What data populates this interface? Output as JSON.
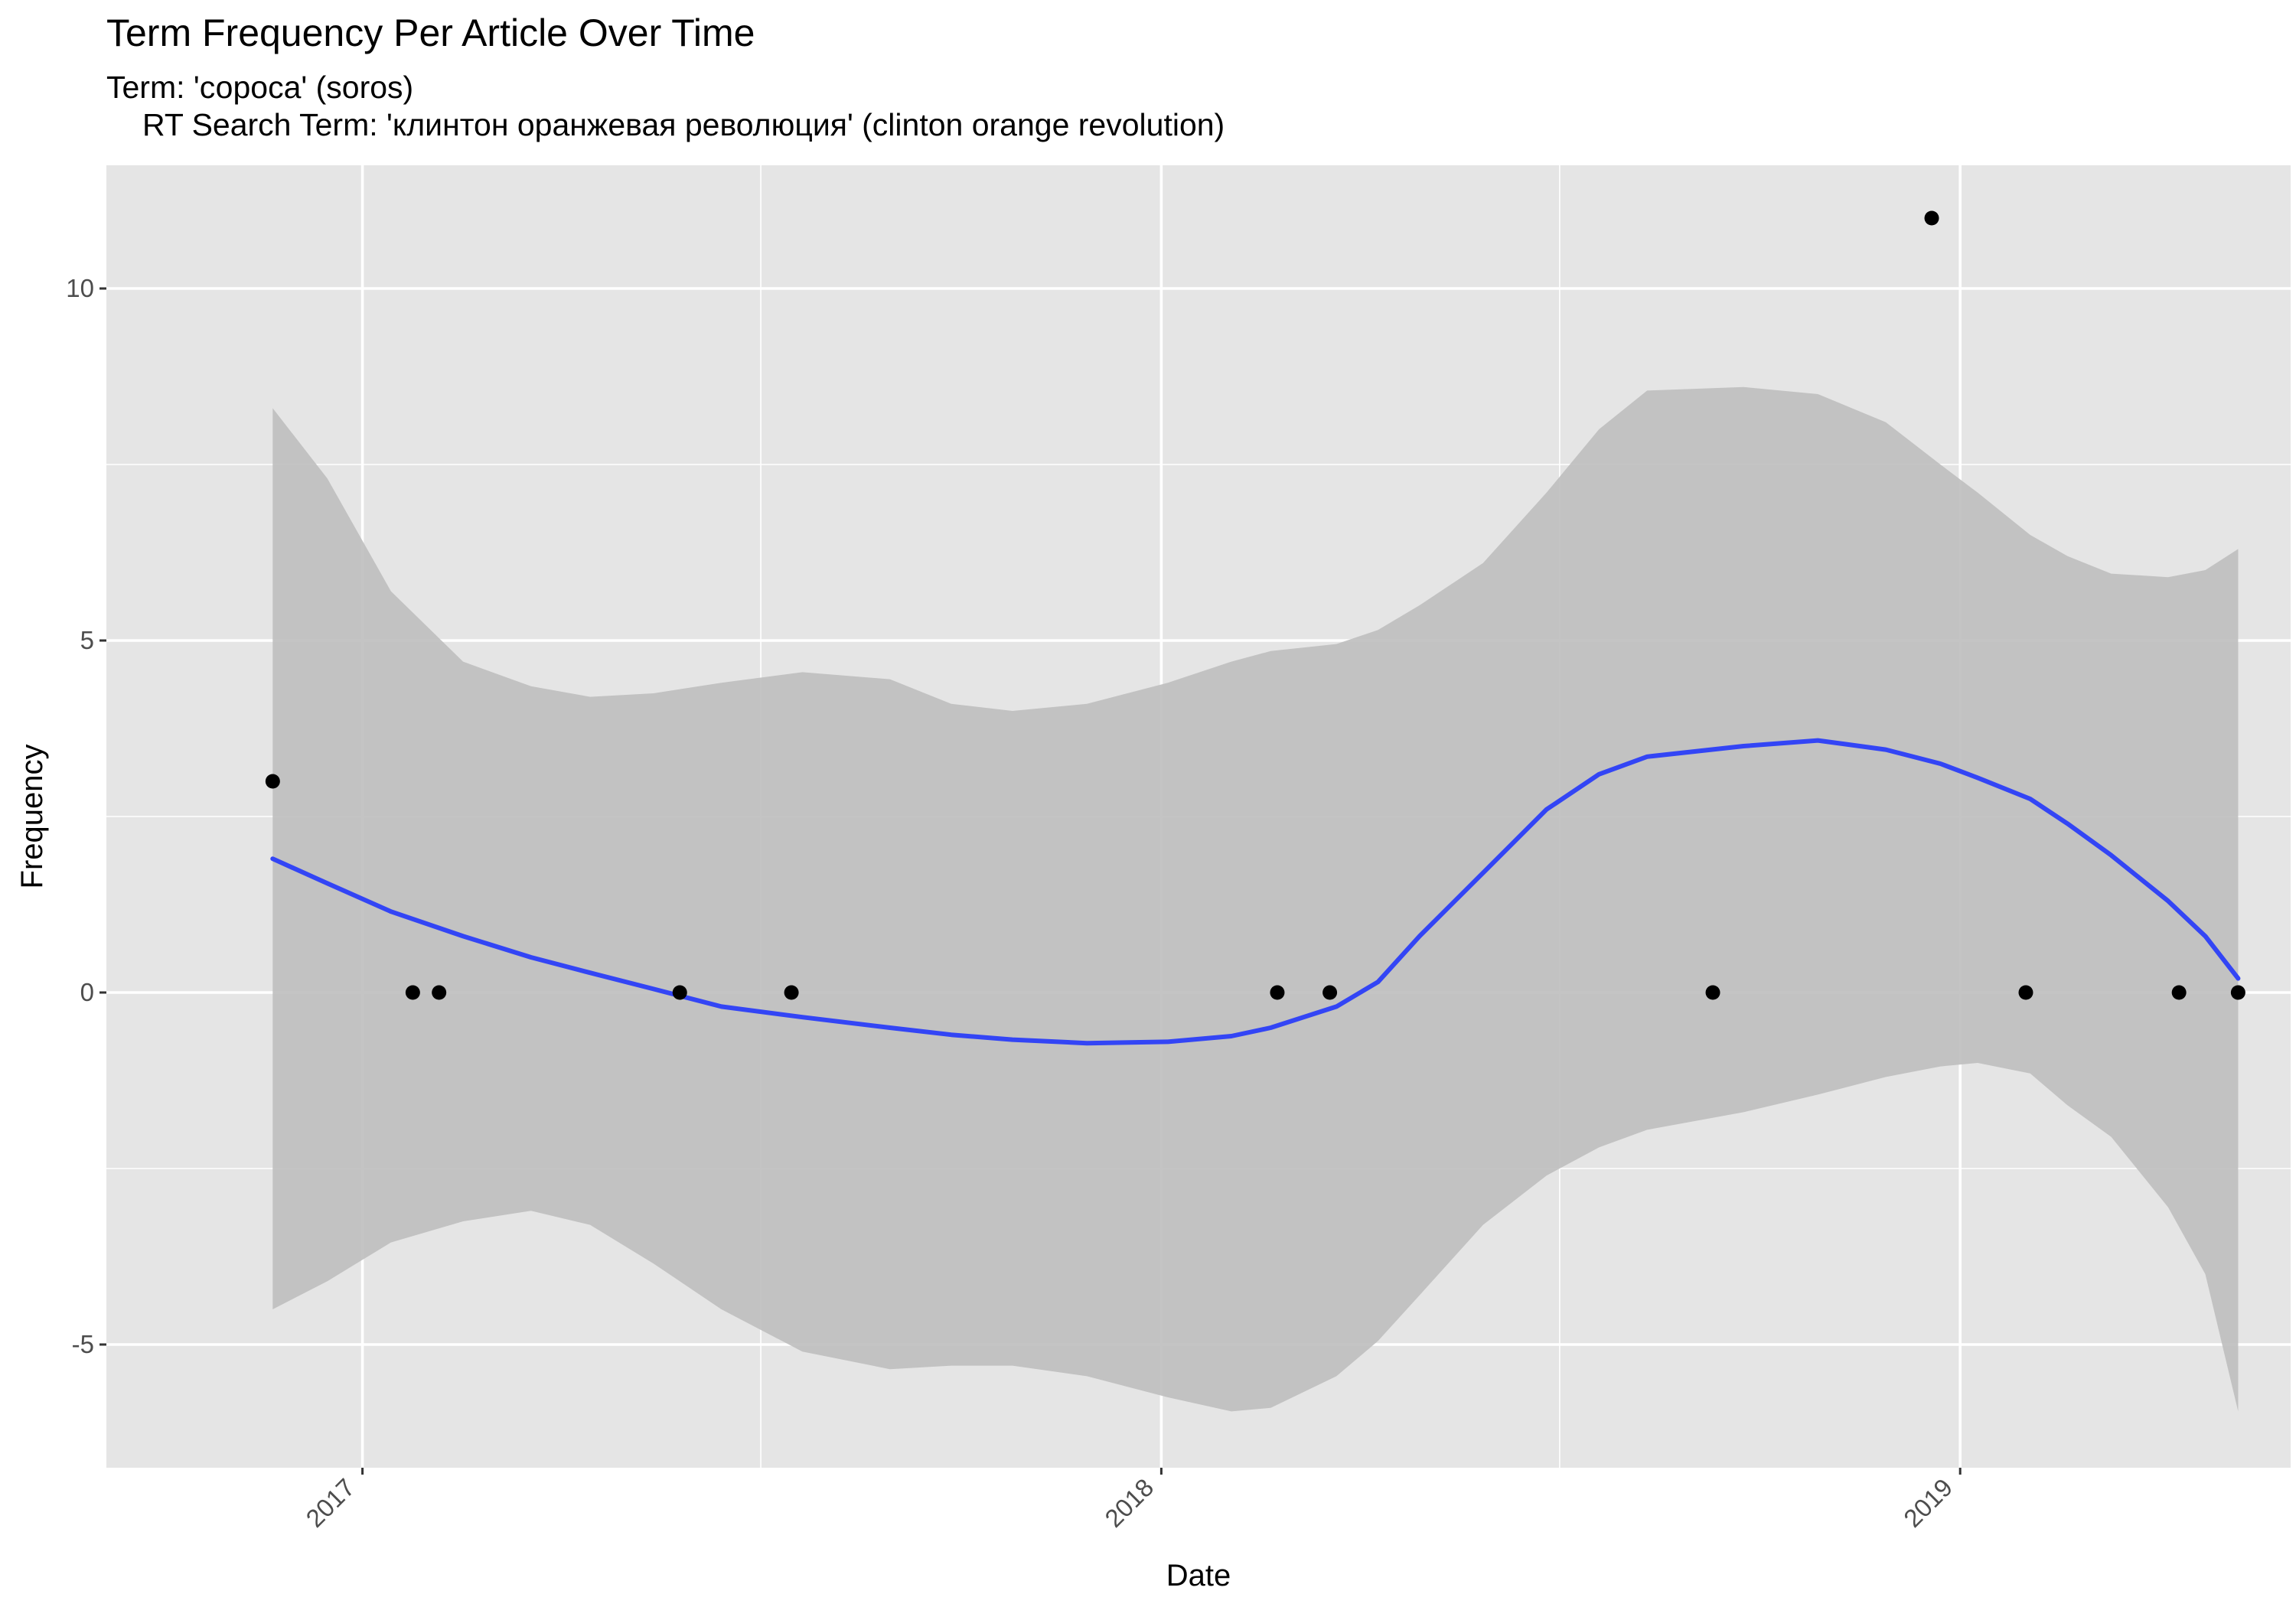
{
  "chart_data": {
    "type": "scatter",
    "title": "Term Frequency Per Article Over Time",
    "subtitle_line1": "Term: 'сороса' (soros)",
    "subtitle_line2": "RT Search Term: 'клинтон оранжевая революция' (clinton orange revolution)",
    "xlabel": "Date",
    "ylabel": "Frequency",
    "x_ticks": [
      "2017",
      "2018",
      "2019"
    ],
    "y_ticks": [
      "-5",
      "0",
      "5",
      "10"
    ],
    "y_tick_values": [
      -5,
      0,
      5,
      10
    ],
    "xlim": [
      "2016-09-06",
      "2019-06-01"
    ],
    "ylim": [
      -6.75,
      11.75
    ],
    "grid": true,
    "points": [
      {
        "date": "2016-11-21",
        "value": 3
      },
      {
        "date": "2017-01-24",
        "value": 0
      },
      {
        "date": "2017-02-05",
        "value": 0
      },
      {
        "date": "2017-05-26",
        "value": 0
      },
      {
        "date": "2017-07-16",
        "value": 0
      },
      {
        "date": "2018-02-23",
        "value": 0
      },
      {
        "date": "2018-03-19",
        "value": 0
      },
      {
        "date": "2018-09-10",
        "value": 0
      },
      {
        "date": "2018-12-19",
        "value": 11
      },
      {
        "date": "2019-01-31",
        "value": 0
      },
      {
        "date": "2019-04-11",
        "value": 0
      },
      {
        "date": "2019-05-08",
        "value": 0
      }
    ],
    "smooth": [
      {
        "date": "2016-11-21",
        "value": 1.9,
        "lower": -4.5,
        "upper": 8.3
      },
      {
        "date": "2016-12-16",
        "value": 1.55,
        "lower": -4.1,
        "upper": 7.3
      },
      {
        "date": "2017-01-14",
        "value": 1.15,
        "lower": -3.55,
        "upper": 5.7
      },
      {
        "date": "2017-02-16",
        "value": 0.8,
        "lower": -3.25,
        "upper": 4.7
      },
      {
        "date": "2017-03-19",
        "value": 0.5,
        "lower": -3.1,
        "upper": 4.35
      },
      {
        "date": "2017-04-15",
        "value": 0.28,
        "lower": -3.3,
        "upper": 4.2
      },
      {
        "date": "2017-05-14",
        "value": 0.05,
        "lower": -3.85,
        "upper": 4.25
      },
      {
        "date": "2017-06-14",
        "value": -0.2,
        "lower": -4.5,
        "upper": 4.4
      },
      {
        "date": "2017-07-21",
        "value": -0.35,
        "lower": -5.1,
        "upper": 4.55
      },
      {
        "date": "2017-08-30",
        "value": -0.5,
        "lower": -5.35,
        "upper": 4.45
      },
      {
        "date": "2017-09-27",
        "value": -0.6,
        "lower": -5.3,
        "upper": 4.1
      },
      {
        "date": "2017-10-25",
        "value": -0.67,
        "lower": -5.3,
        "upper": 4.0
      },
      {
        "date": "2017-11-28",
        "value": -0.72,
        "lower": -5.45,
        "upper": 4.1
      },
      {
        "date": "2018-01-04",
        "value": -0.7,
        "lower": -5.75,
        "upper": 4.4
      },
      {
        "date": "2018-02-02",
        "value": -0.62,
        "lower": -5.95,
        "upper": 4.7
      },
      {
        "date": "2018-02-20",
        "value": -0.5,
        "lower": -5.9,
        "upper": 4.85
      },
      {
        "date": "2018-03-22",
        "value": -0.2,
        "lower": -5.45,
        "upper": 4.95
      },
      {
        "date": "2018-04-10",
        "value": 0.15,
        "lower": -4.95,
        "upper": 5.15
      },
      {
        "date": "2018-04-29",
        "value": 0.8,
        "lower": -4.3,
        "upper": 5.5
      },
      {
        "date": "2018-05-28",
        "value": 1.7,
        "lower": -3.3,
        "upper": 6.1
      },
      {
        "date": "2018-06-26",
        "value": 2.6,
        "lower": -2.6,
        "upper": 7.1
      },
      {
        "date": "2018-07-20",
        "value": 3.1,
        "lower": -2.2,
        "upper": 8.0
      },
      {
        "date": "2018-08-11",
        "value": 3.35,
        "lower": -1.95,
        "upper": 8.55
      },
      {
        "date": "2018-09-24",
        "value": 3.5,
        "lower": -1.7,
        "upper": 8.6
      },
      {
        "date": "2018-10-28",
        "value": 3.58,
        "lower": -1.45,
        "upper": 8.5
      },
      {
        "date": "2018-11-28",
        "value": 3.45,
        "lower": -1.2,
        "upper": 8.1
      },
      {
        "date": "2018-12-23",
        "value": 3.25,
        "lower": -1.05,
        "upper": 7.5
      },
      {
        "date": "2019-01-09",
        "value": 3.05,
        "lower": -1.0,
        "upper": 7.1
      },
      {
        "date": "2019-02-02",
        "value": 2.75,
        "lower": -1.15,
        "upper": 6.5
      },
      {
        "date": "2019-02-19",
        "value": 2.4,
        "lower": -1.6,
        "upper": 6.2
      },
      {
        "date": "2019-03-11",
        "value": 1.95,
        "lower": -2.05,
        "upper": 5.95
      },
      {
        "date": "2019-04-06",
        "value": 1.3,
        "lower": -3.05,
        "upper": 5.9
      },
      {
        "date": "2019-04-23",
        "value": 0.8,
        "lower": -4.0,
        "upper": 6.0
      },
      {
        "date": "2019-05-08",
        "value": 0.2,
        "lower": -5.95,
        "upper": 6.3
      }
    ],
    "colors": {
      "panel_bg": "#e5e5e5",
      "grid": "#ffffff",
      "band": "#bebebe",
      "line": "#3345f5",
      "point": "#000000"
    }
  }
}
